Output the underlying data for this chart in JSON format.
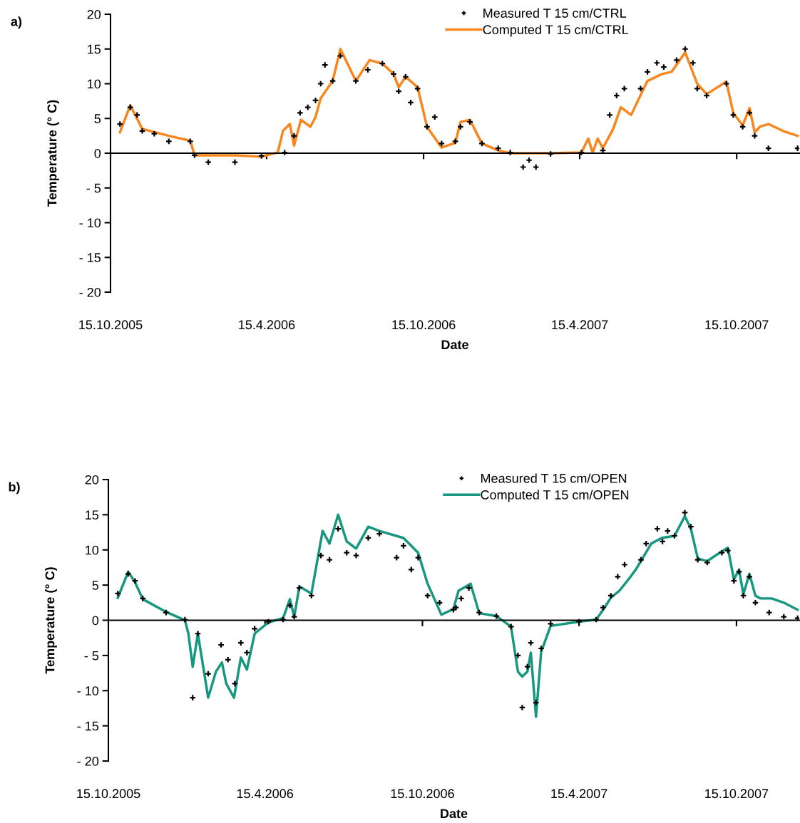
{
  "chart_data": [
    {
      "type": "line",
      "annotations": [
        "a)"
      ],
      "xlabel": "Date",
      "ylabel": "Temperature (° C)",
      "xlim": [
        "2005-10-15",
        "2007-12-27"
      ],
      "ylim": [
        -20,
        20
      ],
      "xticks": [
        {
          "value": "2005-10-15",
          "label": "15.10.2005"
        },
        {
          "value": "2006-04-15",
          "label": "15.4.2006"
        },
        {
          "value": "2006-10-15",
          "label": "15.10.2006"
        },
        {
          "value": "2007-04-15",
          "label": "15.4.2007"
        },
        {
          "value": "2007-10-15",
          "label": "15.10.2007"
        }
      ],
      "yticks": [
        {
          "value": -20,
          "label": "- 20"
        },
        {
          "value": -15,
          "label": "- 15"
        },
        {
          "value": -10,
          "label": "- 10"
        },
        {
          "value": -5,
          "label": "- 5"
        },
        0,
        5,
        10,
        15,
        20
      ],
      "legend": "top",
      "series": [
        {
          "name": "Measured T 15 cm/CTRL",
          "type": "scatter",
          "marker": "cross",
          "color": "#000000",
          "x": [
            "2005-10-26",
            "2005-11-07",
            "2005-11-15",
            "2005-11-21",
            "2005-12-05",
            "2005-12-22",
            "2006-01-16",
            "2006-01-21",
            "2006-02-06",
            "2006-03-09",
            "2006-04-09",
            "2006-05-06",
            "2006-05-17",
            "2006-05-24",
            "2006-06-02",
            "2006-06-11",
            "2006-06-17",
            "2006-06-22",
            "2006-07-01",
            "2006-07-10",
            "2006-07-28",
            "2006-08-11",
            "2006-08-28",
            "2006-09-10",
            "2006-09-16",
            "2006-09-24",
            "2006-09-30",
            "2006-10-08",
            "2006-10-19",
            "2006-10-28",
            "2006-11-05",
            "2006-11-21",
            "2006-11-27",
            "2006-12-08",
            "2006-12-22",
            "2007-01-10",
            "2007-01-24",
            "2007-02-08",
            "2007-02-15",
            "2007-02-23",
            "2007-03-12",
            "2007-04-17",
            "2007-05-12",
            "2007-05-20",
            "2007-05-28",
            "2007-06-06",
            "2007-06-25",
            "2007-07-03",
            "2007-07-14",
            "2007-07-22",
            "2007-08-06",
            "2007-08-16",
            "2007-08-25",
            "2007-08-30",
            "2007-09-10",
            "2007-10-03",
            "2007-10-11",
            "2007-10-22",
            "2007-10-30",
            "2007-11-05",
            "2007-11-21",
            "2007-12-25"
          ],
          "values": [
            4.2,
            6.6,
            5.5,
            3.2,
            2.8,
            1.7,
            1.7,
            -0.3,
            -1.3,
            -1.3,
            -0.4,
            0.1,
            2.5,
            5.8,
            6.6,
            7.6,
            10,
            12.7,
            10.4,
            14,
            10.4,
            12,
            12.9,
            11.4,
            8.9,
            11,
            7.3,
            9.3,
            3.8,
            5.2,
            1.4,
            1.7,
            3.8,
            4.5,
            1.4,
            0.7,
            0.1,
            -2.0,
            -1.0,
            -2.0,
            -0.1,
            0.1,
            0.4,
            5.5,
            8.3,
            9.3,
            9.3,
            11.7,
            13,
            12.4,
            13.4,
            15,
            13,
            9.3,
            8.3,
            10,
            5.5,
            3.8,
            5.8,
            2.5,
            0.7,
            0.7
          ]
        },
        {
          "name": "Computed T 15 cm/CTRL",
          "color": "#f7861e",
          "x": [
            "2005-10-26",
            "2005-11-07",
            "2005-11-21",
            "2005-12-22",
            "2006-01-16",
            "2006-01-21",
            "2006-03-09",
            "2006-04-09",
            "2006-04-28",
            "2006-05-04",
            "2006-05-12",
            "2006-05-17",
            "2006-05-25",
            "2006-06-05",
            "2006-06-11",
            "2006-06-17",
            "2006-07-01",
            "2006-07-10",
            "2006-07-28",
            "2006-08-13",
            "2006-08-28",
            "2006-09-10",
            "2006-09-16",
            "2006-09-24",
            "2006-10-08",
            "2006-10-19",
            "2006-11-05",
            "2006-11-21",
            "2006-11-27",
            "2006-12-08",
            "2006-12-22",
            "2007-01-10",
            "2007-01-24",
            "2007-03-12",
            "2007-04-17",
            "2007-04-25",
            "2007-04-30",
            "2007-05-06",
            "2007-05-12",
            "2007-05-24",
            "2007-06-02",
            "2007-06-14",
            "2007-06-22",
            "2007-07-03",
            "2007-07-20",
            "2007-07-31",
            "2007-08-16",
            "2007-08-30",
            "2007-09-10",
            "2007-10-03",
            "2007-10-11",
            "2007-10-22",
            "2007-10-30",
            "2007-11-05",
            "2007-11-11",
            "2007-11-21",
            "2007-12-08",
            "2007-12-25"
          ],
          "values": [
            3.0,
            6.9,
            3.5,
            2.5,
            1.8,
            -0.3,
            -0.3,
            -0.5,
            0.1,
            3.2,
            4.2,
            1.1,
            4.8,
            3.8,
            5.2,
            7.9,
            10.4,
            15,
            10.4,
            13.4,
            12.9,
            11.4,
            9.5,
            11,
            9.5,
            3.8,
            0.8,
            1.5,
            4.5,
            4.8,
            1.4,
            0.4,
            0,
            0,
            0.1,
            2.1,
            0.1,
            2.1,
            0.7,
            3.5,
            6.6,
            5.5,
            7.6,
            10.4,
            11.4,
            11.7,
            14.5,
            10,
            8.5,
            10.3,
            5.8,
            4,
            6.5,
            3,
            3.8,
            4.2,
            3.2,
            2.5
          ]
        }
      ]
    },
    {
      "type": "line",
      "annotations": [
        "b)"
      ],
      "xlabel": "Date",
      "ylabel": "Temperature (° C)",
      "xlim": [
        "2005-10-15",
        "2007-12-27"
      ],
      "ylim": [
        -20,
        20
      ],
      "xticks": [
        {
          "value": "2005-10-15",
          "label": "15.10.2005"
        },
        {
          "value": "2006-04-15",
          "label": "15.4.2006"
        },
        {
          "value": "2006-10-15",
          "label": "15.10.2006"
        },
        {
          "value": "2007-04-15",
          "label": "15.4.2007"
        },
        {
          "value": "2007-10-15",
          "label": "15.10.2007"
        }
      ],
      "yticks": [
        {
          "value": -20,
          "label": "- 20"
        },
        {
          "value": -15,
          "label": "- 15"
        },
        {
          "value": -10,
          "label": "- 10"
        },
        {
          "value": -5,
          "label": "- 5"
        },
        0,
        5,
        10,
        15,
        20
      ],
      "legend": "top",
      "series": [
        {
          "name": "Measured T 15 cm/OPEN",
          "type": "scatter",
          "marker": "cross",
          "color": "#000000",
          "x": [
            "2005-10-26",
            "2005-11-07",
            "2005-11-15",
            "2005-11-24",
            "2005-12-21",
            "2006-01-12",
            "2006-01-21",
            "2006-01-27",
            "2006-02-08",
            "2006-02-23",
            "2006-03-03",
            "2006-03-11",
            "2006-03-18",
            "2006-03-25",
            "2006-04-03",
            "2006-04-19",
            "2006-05-06",
            "2006-05-14",
            "2006-05-19",
            "2006-05-25",
            "2006-06-08",
            "2006-06-19",
            "2006-06-29",
            "2006-07-09",
            "2006-07-19",
            "2006-07-30",
            "2006-08-13",
            "2006-08-26",
            "2006-09-15",
            "2006-09-23",
            "2006-10-02",
            "2006-10-10",
            "2006-10-21",
            "2006-11-04",
            "2006-11-20",
            "2006-11-23",
            "2006-11-29",
            "2006-12-08",
            "2006-12-20",
            "2007-01-09",
            "2007-01-26",
            "2007-02-03",
            "2007-02-08",
            "2007-02-14",
            "2007-02-18",
            "2007-02-24",
            "2007-03-02",
            "2007-03-13",
            "2007-04-15",
            "2007-05-05",
            "2007-05-13",
            "2007-05-22",
            "2007-05-30",
            "2007-06-07",
            "2007-06-26",
            "2007-07-02",
            "2007-07-15",
            "2007-07-21",
            "2007-07-27",
            "2007-08-04",
            "2007-08-16",
            "2007-08-23",
            "2007-08-31",
            "2007-09-11",
            "2007-09-28",
            "2007-10-05",
            "2007-10-12",
            "2007-10-18",
            "2007-10-23",
            "2007-10-30",
            "2007-11-06",
            "2007-11-22",
            "2007-12-09",
            "2007-12-25"
          ],
          "values": [
            3.8,
            6.6,
            5.6,
            3.1,
            1.1,
            0.1,
            -11,
            -1.9,
            -7.6,
            -3.5,
            -5.6,
            -9.0,
            -3.2,
            -4.6,
            -1.2,
            -0.2,
            0.1,
            2.1,
            0.5,
            4.6,
            3.5,
            9.2,
            8.6,
            13,
            9.6,
            9.2,
            11.7,
            12.3,
            8.9,
            10.6,
            7.2,
            8.9,
            3.5,
            2.5,
            1.5,
            1.8,
            3.1,
            4.6,
            1.1,
            0.6,
            -0.9,
            -5.0,
            -12.4,
            -6.6,
            -3.2,
            -11.7,
            -4.0,
            -0.5,
            -0.2,
            0.1,
            1.8,
            3.5,
            6.2,
            7.9,
            8.6,
            10.9,
            13,
            11.2,
            12.7,
            12.0,
            15.3,
            13.3,
            8.6,
            8.2,
            9.6,
            9.9,
            5.6,
            6.9,
            3.5,
            6.2,
            2.5,
            1.1,
            0.5,
            0.3
          ]
        },
        {
          "name": "Computed T 15 cm/OPEN",
          "color": "#17977f",
          "x": [
            "2005-10-26",
            "2005-11-07",
            "2005-11-15",
            "2005-11-24",
            "2005-12-21",
            "2006-01-12",
            "2006-01-16",
            "2006-01-21",
            "2006-01-27",
            "2006-02-08",
            "2006-02-17",
            "2006-02-24",
            "2006-03-01",
            "2006-03-10",
            "2006-03-18",
            "2006-03-25",
            "2006-04-03",
            "2006-04-19",
            "2006-05-06",
            "2006-05-14",
            "2006-05-19",
            "2006-05-25",
            "2006-06-08",
            "2006-06-21",
            "2006-06-29",
            "2006-07-09",
            "2006-07-19",
            "2006-07-30",
            "2006-08-13",
            "2006-08-26",
            "2006-09-23",
            "2006-10-10",
            "2006-10-21",
            "2006-11-06",
            "2006-11-20",
            "2006-11-26",
            "2006-12-10",
            "2006-12-20",
            "2007-01-09",
            "2007-01-26",
            "2007-02-03",
            "2007-02-08",
            "2007-02-14",
            "2007-02-18",
            "2007-02-24",
            "2007-03-02",
            "2007-03-13",
            "2007-04-15",
            "2007-05-05",
            "2007-05-13",
            "2007-05-22",
            "2007-06-01",
            "2007-06-12",
            "2007-06-20",
            "2007-07-08",
            "2007-07-20",
            "2007-08-04",
            "2007-08-16",
            "2007-08-23",
            "2007-08-31",
            "2007-09-11",
            "2007-09-28",
            "2007-10-05",
            "2007-10-12",
            "2007-10-18",
            "2007-10-23",
            "2007-10-30",
            "2007-11-06",
            "2007-11-12",
            "2007-11-25",
            "2007-12-09",
            "2007-12-25"
          ],
          "values": [
            3.2,
            6.9,
            5.4,
            3.0,
            1.2,
            0.0,
            -1.9,
            -6.6,
            -1.9,
            -11,
            -7.3,
            -6.0,
            -9.0,
            -11,
            -5.3,
            -7.0,
            -1.9,
            -0.3,
            0.3,
            3.0,
            0.5,
            4.8,
            3.8,
            12.7,
            10.9,
            15,
            11.2,
            10.2,
            13.3,
            12.7,
            11.7,
            9.6,
            5.2,
            0.8,
            1.6,
            4.2,
            5.2,
            1.0,
            0.6,
            -0.9,
            -7.3,
            -8.0,
            -7.3,
            -4.6,
            -13.7,
            -4.5,
            -0.8,
            -0.2,
            0.1,
            1.5,
            3.2,
            4.2,
            5.9,
            7.2,
            10.9,
            11.7,
            12.0,
            14.8,
            13.0,
            8.8,
            8.4,
            9.8,
            10.3,
            5.8,
            7.2,
            3.7,
            6.6,
            3.5,
            3.1,
            3.1,
            2.5,
            1.5
          ]
        }
      ]
    }
  ]
}
